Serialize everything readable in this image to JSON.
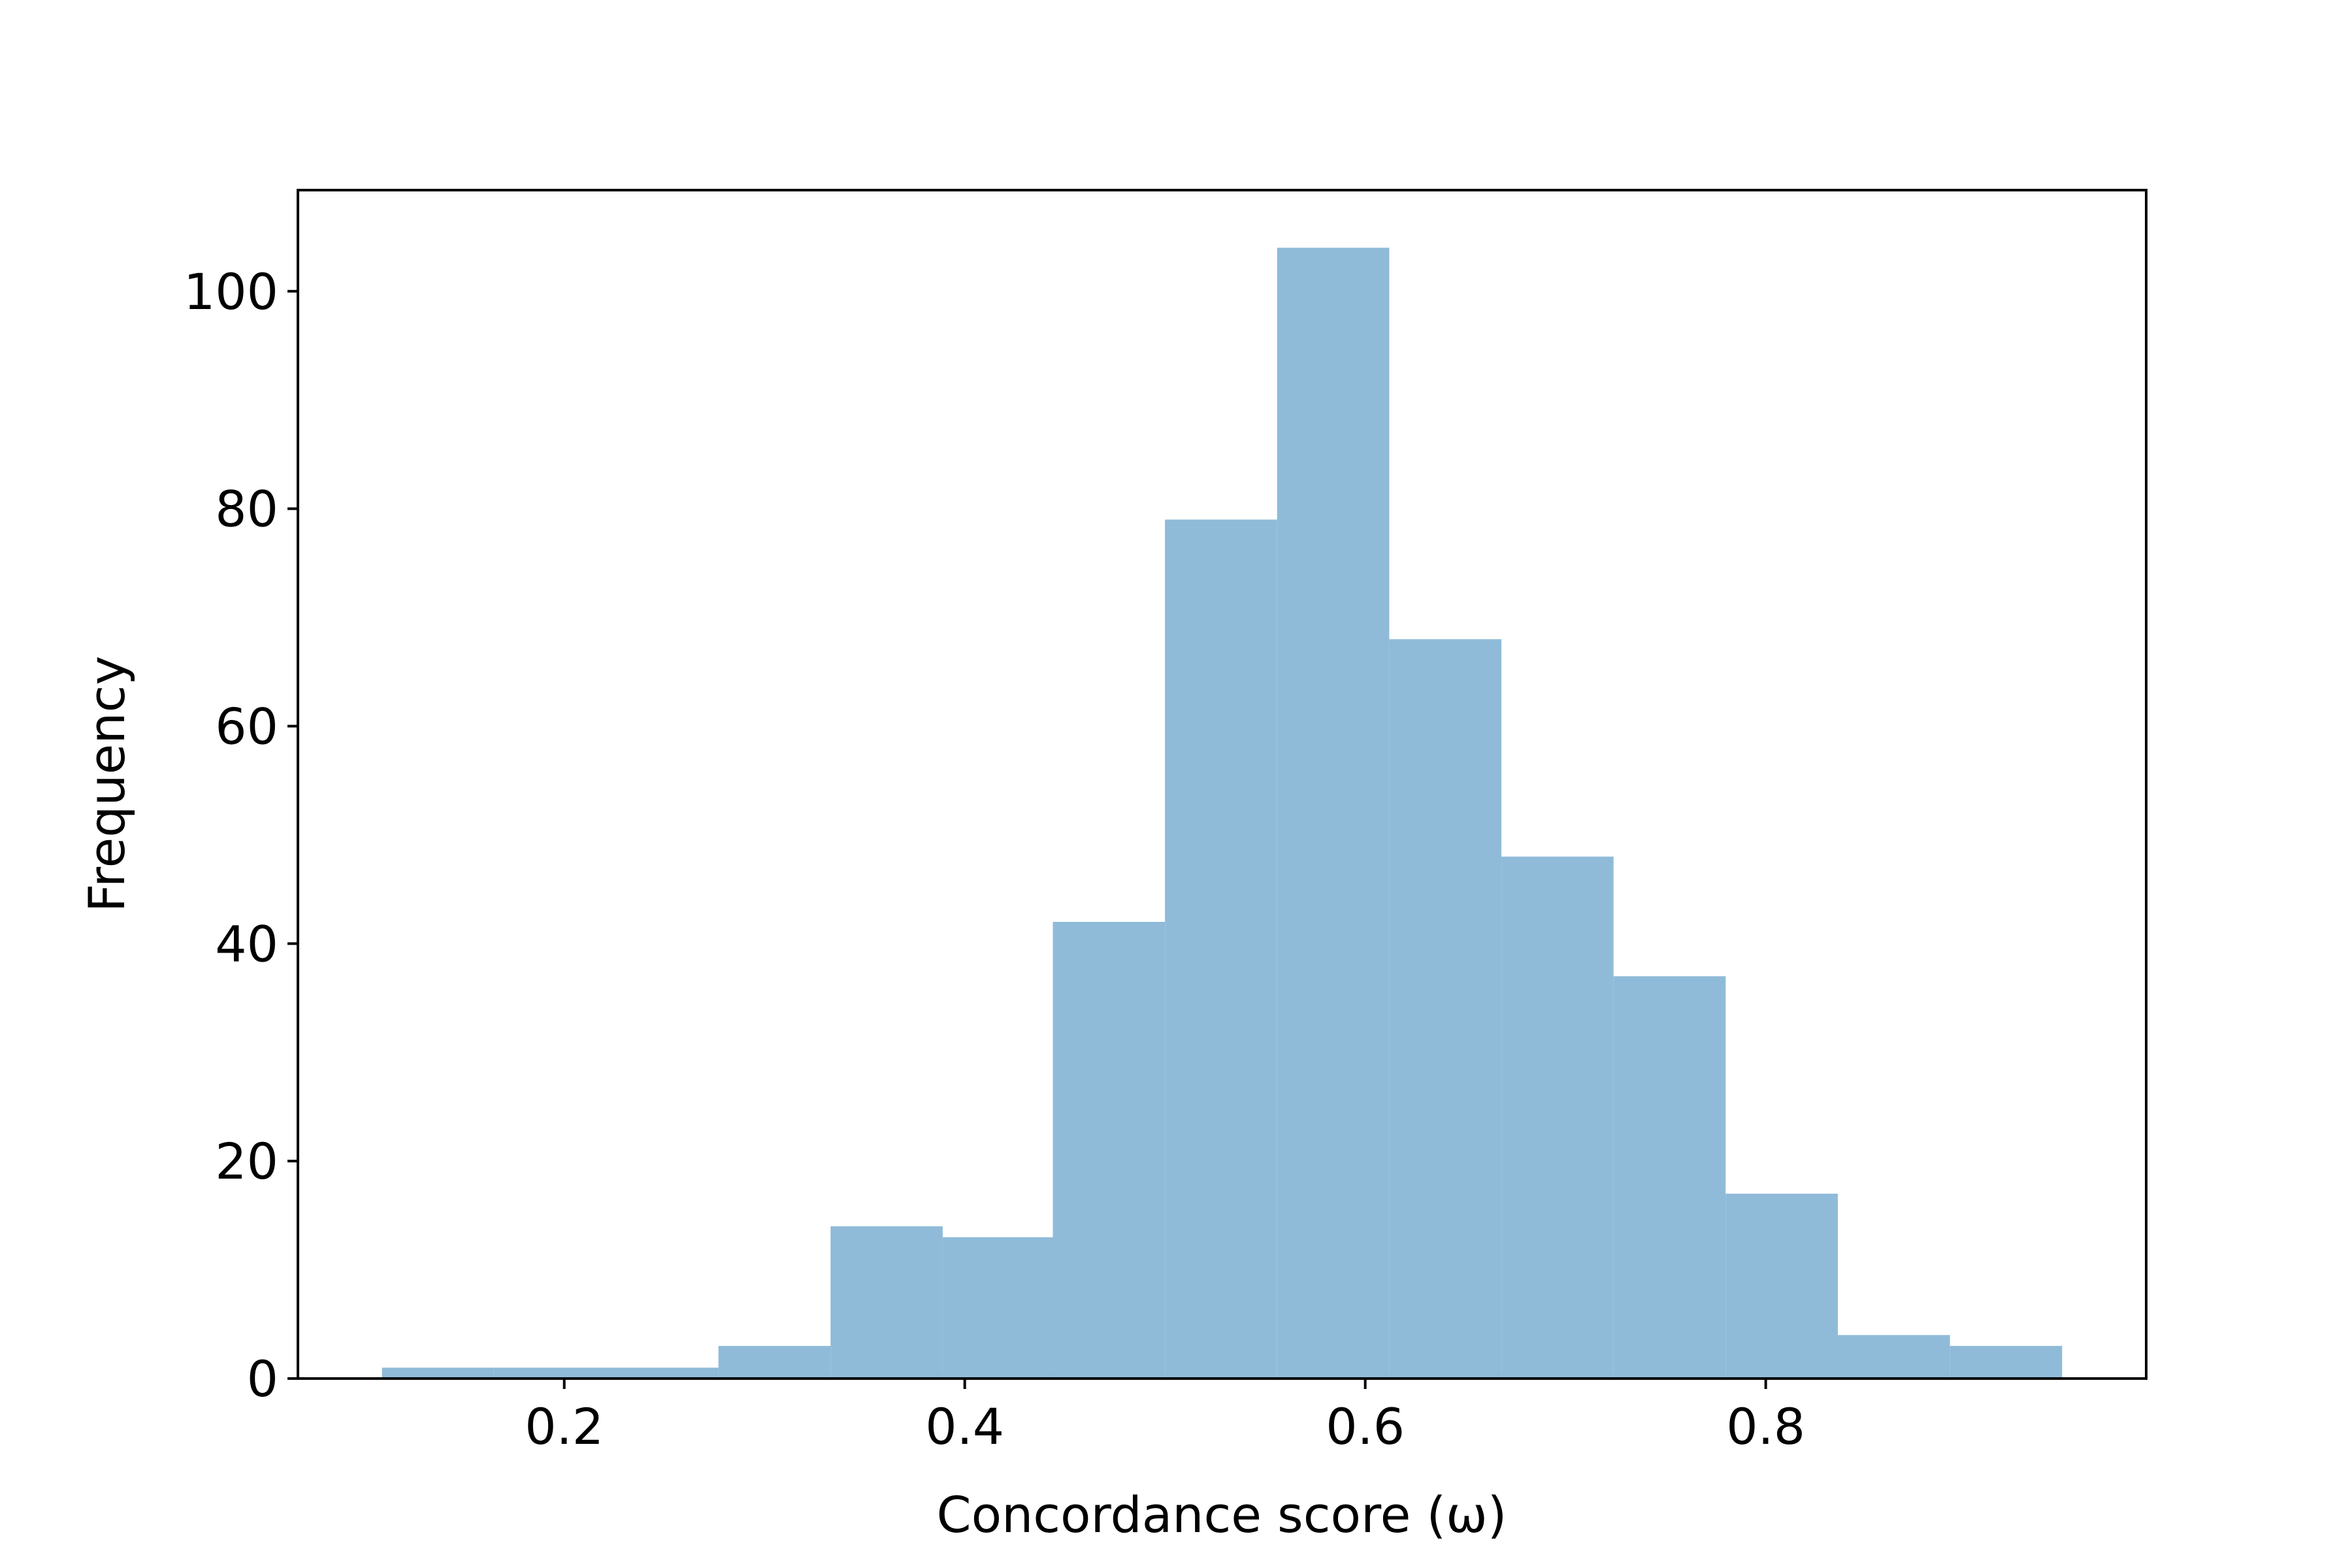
{
  "chart_data": {
    "type": "histogram",
    "x_label": "Concordance score (ω)",
    "y_label": "Frequency",
    "bins": [
      0.109,
      0.165,
      0.221,
      0.277,
      0.333,
      0.389,
      0.444,
      0.5,
      0.556,
      0.612,
      0.668,
      0.724,
      0.78,
      0.836,
      0.892,
      0.948
    ],
    "values": [
      1,
      1,
      1,
      3,
      14,
      13,
      42,
      79,
      104,
      68,
      48,
      37,
      17,
      4,
      3
    ],
    "color": "#8fbbd9",
    "xlim": [
      0.067,
      0.99
    ],
    "xticks": [
      0.2,
      0.4,
      0.6,
      0.8
    ],
    "ylim": [
      0,
      109.3
    ],
    "yticks": [
      0,
      20,
      40,
      60,
      80,
      100
    ]
  }
}
